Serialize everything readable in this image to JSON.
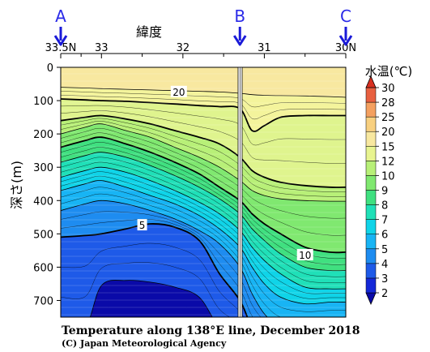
{
  "chart_data": {
    "type": "contour",
    "title": "Temperature along 138°E line, December 2018",
    "credit": "(C) Japan Meteorological Agency",
    "xlabel": "緯度",
    "ylabel": "深さ(m)",
    "colorbar_label": "水温(℃)",
    "x_ticks": [
      "33.5N",
      "33",
      "32",
      "31",
      "30N"
    ],
    "x_tick_values": [
      33.5,
      33,
      32,
      31,
      30
    ],
    "xlim": [
      33.5,
      30
    ],
    "y_ticks": [
      0,
      100,
      200,
      300,
      400,
      500,
      600,
      700
    ],
    "ylim": [
      0,
      750
    ],
    "stations": [
      {
        "label": "A",
        "lat": 33.5
      },
      {
        "label": "B",
        "lat": 31.3
      },
      {
        "label": "C",
        "lat": 30.0
      }
    ],
    "colorbar_levels": [
      2,
      3,
      4,
      5,
      6,
      7,
      8,
      9,
      10,
      12,
      15,
      20,
      25,
      28,
      30
    ],
    "colorbar_colors": [
      "#0a0aa8",
      "#1428d8",
      "#1e5ae8",
      "#1e8cf0",
      "#18b4f4",
      "#10d4e8",
      "#20e0b8",
      "#40e080",
      "#80e870",
      "#b8f078",
      "#e8f490",
      "#f8e8a0",
      "#f8d080",
      "#f4a060",
      "#e86040",
      "#d83020"
    ],
    "contour_labels": [
      {
        "value": "20",
        "lat": 32.05,
        "depth": 75
      },
      {
        "value": "5",
        "lat": 32.5,
        "depth": 475
      },
      {
        "value": "10",
        "lat": 30.5,
        "depth": 565
      }
    ]
  }
}
